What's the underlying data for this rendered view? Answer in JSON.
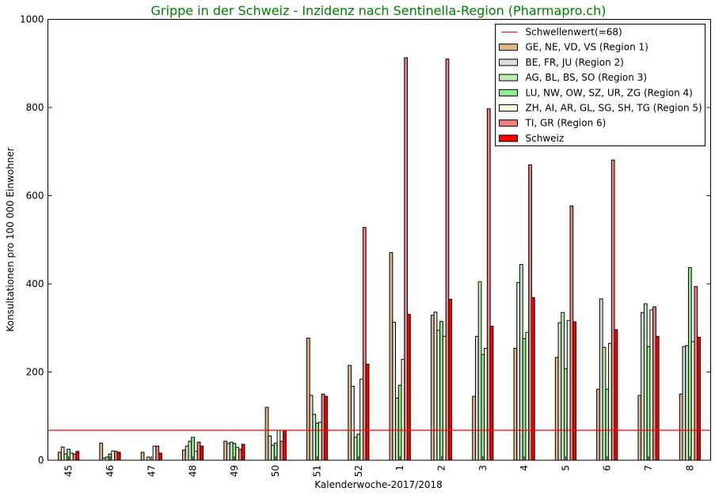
{
  "chart_data": {
    "type": "bar",
    "title": "Grippe in der Schweiz - Inzidenz nach Sentinella-Region (Pharmapro.ch)",
    "xlabel": "Kalenderwoche-2017/2018",
    "ylabel": "Konsultationen pro 100 000 Einwohner",
    "ylim": [
      0,
      1000
    ],
    "yticks": [
      0,
      200,
      400,
      600,
      800,
      1000
    ],
    "categories": [
      "45",
      "46",
      "47",
      "48",
      "49",
      "50",
      "51",
      "52",
      "1",
      "2",
      "3",
      "4",
      "5",
      "6",
      "7",
      "8"
    ],
    "threshold": {
      "name": "Schwellenwert(=68)",
      "value": 68,
      "color": "#ff0000"
    },
    "legend_position": "top-right",
    "title_color": "#008000",
    "series": [
      {
        "name": "GE, NE, VD, VS (Region 1)",
        "color": "#deb887",
        "values": [
          18,
          39,
          18,
          23,
          43,
          120,
          277,
          215,
          471,
          329,
          145,
          254,
          233,
          161,
          147,
          150
        ]
      },
      {
        "name": "BE, FR, JU (Region 2)",
        "color": "#dcdcdc",
        "values": [
          30,
          5,
          0,
          32,
          38,
          55,
          147,
          168,
          313,
          336,
          281,
          403,
          312,
          366,
          335,
          258
        ]
      },
      {
        "name": "AG, BL, BS, SO (Region 3)",
        "color": "#c1eeb0",
        "values": [
          14,
          7,
          7,
          43,
          41,
          34,
          104,
          52,
          141,
          295,
          405,
          444,
          335,
          256,
          355,
          260
        ]
      },
      {
        "name": "LU, NW, OW, SZ, UR, ZG (Region 4)",
        "color": "#90ee90",
        "values": [
          25,
          14,
          0,
          52,
          38,
          39,
          84,
          59,
          170,
          315,
          240,
          276,
          208,
          161,
          258,
          437
        ]
      },
      {
        "name": "ZH, AI, AR, GL, SG, SH, TG (Region 5)",
        "color": "#ffffe0",
        "values": [
          16,
          21,
          32,
          20,
          29,
          68,
          86,
          184,
          229,
          281,
          254,
          290,
          317,
          265,
          341,
          269
        ]
      },
      {
        "name": "TI, GR (Region 6)",
        "color": "#f08080",
        "values": [
          14,
          20,
          32,
          41,
          25,
          43,
          150,
          528,
          913,
          910,
          797,
          670,
          577,
          681,
          348,
          394
        ]
      },
      {
        "name": "Schweiz",
        "color": "#ff0000",
        "values": [
          20,
          18,
          16,
          32,
          36,
          68,
          145,
          218,
          331,
          365,
          304,
          369,
          314,
          296,
          281,
          279
        ]
      }
    ]
  }
}
